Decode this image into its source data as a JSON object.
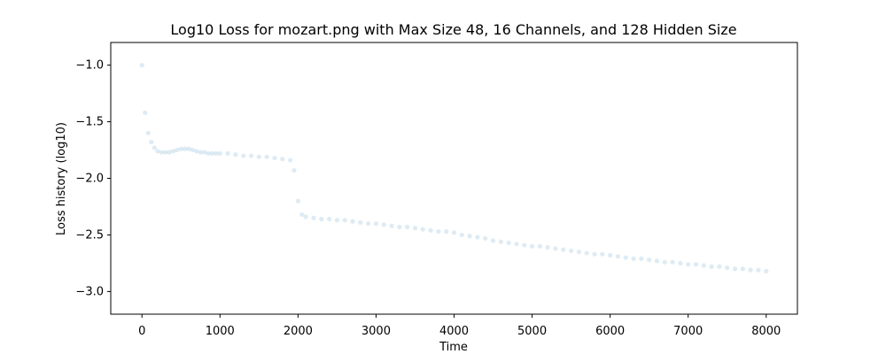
{
  "chart_data": {
    "type": "scatter",
    "title": "Log10 Loss for mozart.png with Max Size 48, 16 Channels, and 128 Hidden Size",
    "xlabel": "Time",
    "ylabel": "Loss history (log10)",
    "xlim": [
      -400,
      8400
    ],
    "ylim": [
      -3.2,
      -0.8
    ],
    "xticks": [
      0,
      1000,
      2000,
      3000,
      4000,
      5000,
      6000,
      7000,
      8000
    ],
    "yticks": [
      -1.0,
      -1.5,
      -2.0,
      -2.5,
      -3.0
    ],
    "xtick_labels": [
      "0",
      "1000",
      "2000",
      "3000",
      "4000",
      "5000",
      "6000",
      "7000",
      "8000"
    ],
    "ytick_labels": [
      "−1.0",
      "−1.5",
      "−2.0",
      "−2.5",
      "−3.0"
    ],
    "grid": false,
    "legend": "none",
    "point_color": "#1f77b4",
    "point_opacity": 0.15,
    "series": [
      {
        "x": [
          0,
          40,
          80,
          120,
          160,
          200,
          250,
          300,
          350,
          400,
          450,
          500,
          550,
          600,
          650,
          700,
          750,
          800,
          850,
          900,
          950,
          1000,
          1100,
          1200,
          1300,
          1400,
          1500,
          1600,
          1700,
          1800,
          1900,
          1950,
          2000,
          2050,
          2100,
          2200,
          2300,
          2400,
          2500,
          2600,
          2700,
          2800,
          2900,
          3000,
          3100,
          3200,
          3300,
          3400,
          3500,
          3600,
          3700,
          3800,
          3900,
          4000,
          4100,
          4200,
          4300,
          4400,
          4500,
          4600,
          4700,
          4800,
          4900,
          5000,
          5100,
          5200,
          5300,
          5400,
          5500,
          5600,
          5700,
          5800,
          5900,
          6000,
          6100,
          6200,
          6300,
          6400,
          6500,
          6600,
          6700,
          6800,
          6900,
          7000,
          7100,
          7200,
          7300,
          7400,
          7500,
          7600,
          7700,
          7800,
          7900,
          8000
        ],
        "y": [
          -1.0,
          -1.42,
          -1.6,
          -1.68,
          -1.73,
          -1.76,
          -1.77,
          -1.77,
          -1.77,
          -1.76,
          -1.75,
          -1.74,
          -1.74,
          -1.74,
          -1.75,
          -1.76,
          -1.77,
          -1.77,
          -1.78,
          -1.78,
          -1.78,
          -1.78,
          -1.78,
          -1.79,
          -1.8,
          -1.8,
          -1.81,
          -1.81,
          -1.82,
          -1.83,
          -1.84,
          -1.93,
          -2.2,
          -2.32,
          -2.34,
          -2.35,
          -2.36,
          -2.36,
          -2.37,
          -2.37,
          -2.38,
          -2.39,
          -2.4,
          -2.4,
          -2.41,
          -2.42,
          -2.43,
          -2.43,
          -2.44,
          -2.45,
          -2.46,
          -2.47,
          -2.47,
          -2.48,
          -2.5,
          -2.51,
          -2.52,
          -2.53,
          -2.55,
          -2.56,
          -2.57,
          -2.58,
          -2.59,
          -2.6,
          -2.6,
          -2.61,
          -2.62,
          -2.63,
          -2.64,
          -2.65,
          -2.66,
          -2.67,
          -2.67,
          -2.68,
          -2.69,
          -2.7,
          -2.71,
          -2.71,
          -2.72,
          -2.73,
          -2.74,
          -2.74,
          -2.75,
          -2.76,
          -2.76,
          -2.77,
          -2.78,
          -2.78,
          -2.79,
          -2.8,
          -2.8,
          -2.81,
          -2.81,
          -2.82
        ],
        "spread": [
          0.05,
          0.16,
          0.19,
          0.2,
          0.2,
          0.2,
          0.19,
          0.19,
          0.19,
          0.19,
          0.19,
          0.19,
          0.19,
          0.19,
          0.19,
          0.19,
          0.18,
          0.18,
          0.18,
          0.18,
          0.18,
          0.18,
          0.18,
          0.18,
          0.18,
          0.18,
          0.18,
          0.17,
          0.17,
          0.17,
          0.17,
          0.16,
          0.14,
          0.12,
          0.11,
          0.11,
          0.11,
          0.11,
          0.11,
          0.11,
          0.11,
          0.11,
          0.11,
          0.11,
          0.11,
          0.11,
          0.11,
          0.11,
          0.11,
          0.11,
          0.11,
          0.11,
          0.11,
          0.11,
          0.11,
          0.11,
          0.12,
          0.12,
          0.12,
          0.12,
          0.12,
          0.12,
          0.12,
          0.12,
          0.12,
          0.12,
          0.12,
          0.12,
          0.12,
          0.12,
          0.12,
          0.12,
          0.12,
          0.12,
          0.12,
          0.12,
          0.12,
          0.12,
          0.12,
          0.12,
          0.12,
          0.13,
          0.13,
          0.13,
          0.13,
          0.13,
          0.13,
          0.13,
          0.13,
          0.13,
          0.13,
          0.13,
          0.13,
          0.13
        ]
      }
    ]
  }
}
